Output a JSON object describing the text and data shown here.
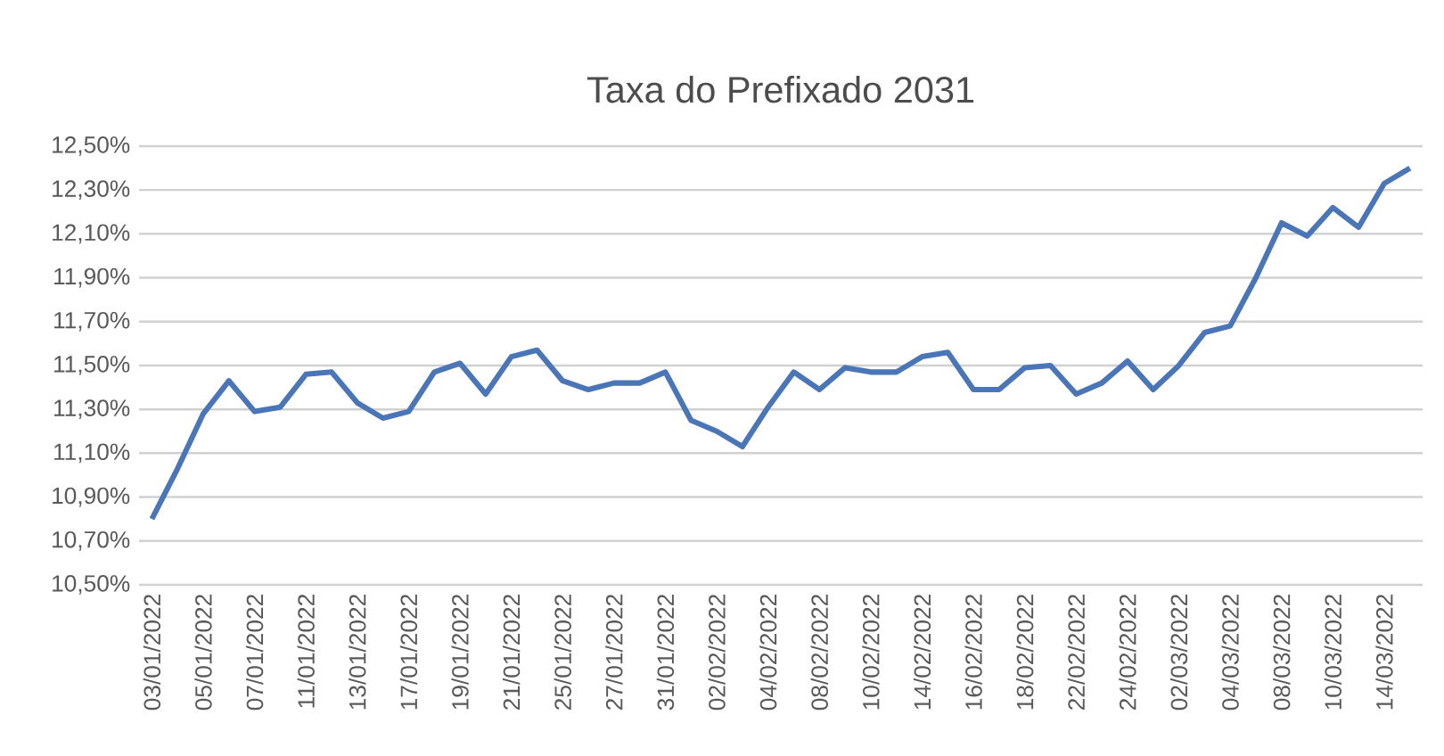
{
  "chart_data": {
    "type": "line",
    "title": "Taxa do Prefixado 2031",
    "categories": [
      "03/01/2022",
      null,
      "05/01/2022",
      null,
      "07/01/2022",
      null,
      "11/01/2022",
      null,
      "13/01/2022",
      null,
      "17/01/2022",
      null,
      "19/01/2022",
      null,
      "21/01/2022",
      null,
      "25/01/2022",
      null,
      "27/01/2022",
      null,
      "31/01/2022",
      null,
      "02/02/2022",
      null,
      "04/02/2022",
      null,
      "08/02/2022",
      null,
      "10/02/2022",
      null,
      "14/02/2022",
      null,
      "16/02/2022",
      null,
      "18/02/2022",
      null,
      "22/02/2022",
      null,
      "24/02/2022",
      null,
      "02/03/2022",
      null,
      "04/03/2022",
      null,
      "08/03/2022",
      null,
      "10/03/2022",
      null,
      "14/03/2022",
      null
    ],
    "series": [
      {
        "color": "#4a76b8",
        "values": [
          10.8,
          11.03,
          11.28,
          11.43,
          11.29,
          11.31,
          11.46,
          11.47,
          11.33,
          11.26,
          11.29,
          11.47,
          11.51,
          11.37,
          11.54,
          11.57,
          11.43,
          11.39,
          11.42,
          11.42,
          11.47,
          11.25,
          11.2,
          11.13,
          11.31,
          11.47,
          11.39,
          11.49,
          11.47,
          11.47,
          11.54,
          11.56,
          11.39,
          11.39,
          11.49,
          11.5,
          11.37,
          11.42,
          11.52,
          11.39,
          11.5,
          11.65,
          11.68,
          11.9,
          12.15,
          12.09,
          12.22,
          12.13,
          12.33,
          12.4
        ]
      }
    ],
    "ylim": [
      10.5,
      12.5
    ],
    "yticks": [
      {
        "value": 10.5,
        "label": "10,50%"
      },
      {
        "value": 10.7,
        "label": "10,70%"
      },
      {
        "value": 10.9,
        "label": "10,90%"
      },
      {
        "value": 11.1,
        "label": "11,10%"
      },
      {
        "value": 11.3,
        "label": "11,30%"
      },
      {
        "value": 11.5,
        "label": "11,50%"
      },
      {
        "value": 11.7,
        "label": "11,70%"
      },
      {
        "value": 11.9,
        "label": "11,90%"
      },
      {
        "value": 12.1,
        "label": "12,10%"
      },
      {
        "value": 12.3,
        "label": "12,30%"
      },
      {
        "value": 12.5,
        "label": "12,50%"
      }
    ],
    "grid": "y",
    "marker": "none",
    "line_style": "solid",
    "legend": false
  }
}
